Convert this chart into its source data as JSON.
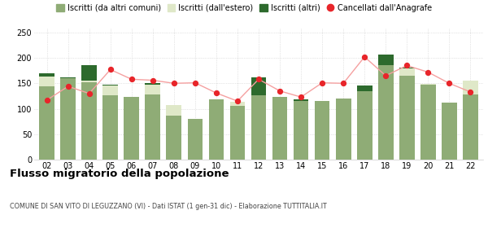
{
  "years": [
    "02",
    "03",
    "04",
    "05",
    "06",
    "07",
    "08",
    "09",
    "10",
    "11",
    "12",
    "13",
    "14",
    "15",
    "16",
    "17",
    "18",
    "19",
    "20",
    "21",
    "22"
  ],
  "iscritti_comuni": [
    144,
    160,
    152,
    127,
    124,
    128,
    86,
    80,
    118,
    105,
    127,
    124,
    116,
    115,
    120,
    135,
    185,
    165,
    147,
    112,
    128
  ],
  "iscritti_estero": [
    20,
    0,
    3,
    18,
    0,
    20,
    22,
    0,
    0,
    8,
    0,
    0,
    0,
    0,
    0,
    0,
    0,
    14,
    2,
    0,
    28
  ],
  "iscritti_altri": [
    5,
    2,
    30,
    3,
    0,
    3,
    0,
    0,
    0,
    0,
    34,
    0,
    2,
    0,
    0,
    10,
    22,
    2,
    0,
    0,
    0
  ],
  "cancellati": [
    117,
    144,
    130,
    177,
    158,
    156,
    150,
    151,
    131,
    115,
    158,
    135,
    123,
    151,
    150,
    202,
    165,
    185,
    172,
    150,
    133
  ],
  "color_comuni": "#8fac76",
  "color_estero": "#dfe8c8",
  "color_altri": "#2d6a2d",
  "color_cancellati": "#e8252a",
  "color_line": "#f5a0a0",
  "ylim": [
    0,
    260
  ],
  "yticks": [
    0,
    50,
    100,
    150,
    200,
    250
  ],
  "title": "Flusso migratorio della popolazione",
  "subtitle": "COMUNE DI SAN VITO DI LEGUZZANO (VI) - Dati ISTAT (1 gen-31 dic) - Elaborazione TUTTITALIA.IT",
  "legend_labels": [
    "Iscritti (da altri comuni)",
    "Iscritti (dall'estero)",
    "Iscritti (altri)",
    "Cancellati dall'Anagrafe"
  ],
  "background_color": "#ffffff",
  "grid_color": "#cccccc"
}
